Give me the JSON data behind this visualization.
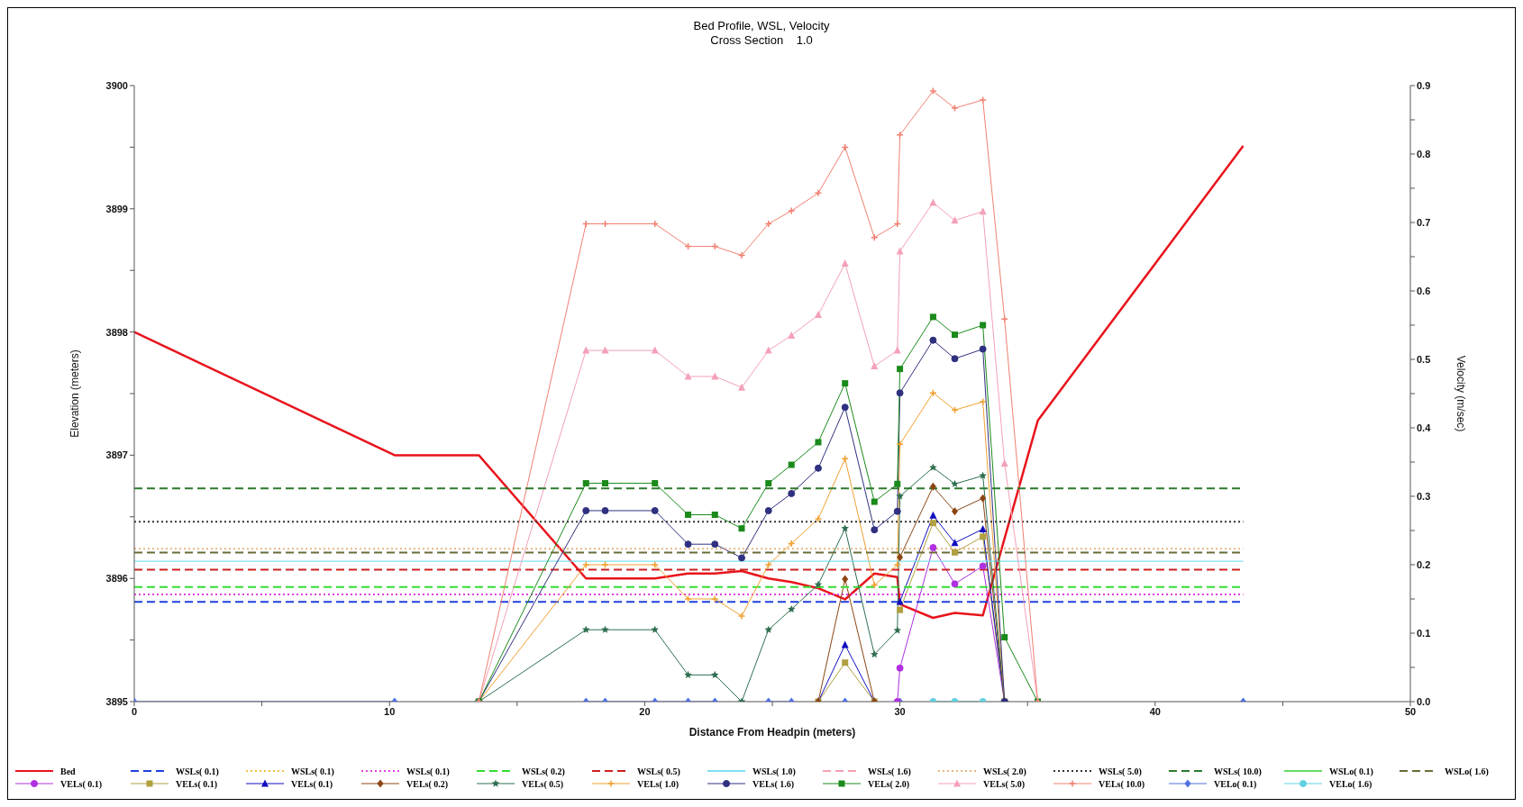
{
  "chart_data": {
    "type": "line",
    "title": "Bed Profile, WSL, Velocity",
    "subtitle": "Cross Section    1.0",
    "xlabel": "Distance From Headpin (meters)",
    "ylabel": "Elevation (meters)",
    "y2label": "Velocity (m/sec)",
    "xlim": [
      0,
      50
    ],
    "xticks": [
      0,
      {
        "value": 5,
        "label": null
      },
      10,
      {
        "value": 15,
        "label": null
      },
      20,
      {
        "value": 25,
        "label": null
      },
      30,
      {
        "value": 35,
        "label": null
      },
      40,
      {
        "value": 45,
        "label": null
      },
      50
    ],
    "ylim": [
      3895,
      3900
    ],
    "yticks": [
      3895,
      {
        "value": 3895.5,
        "label": null
      },
      3896,
      {
        "value": 3896.5,
        "label": null
      },
      3897,
      {
        "value": 3897.5,
        "label": null
      },
      3898,
      {
        "value": 3898.5,
        "label": null
      },
      3899,
      {
        "value": 3899.5,
        "label": null
      },
      3900
    ],
    "y2lim": [
      0,
      0.9
    ],
    "y2ticks": [
      {
        "value": 0,
        "label": "0.0"
      },
      {
        "value": 0.05,
        "label": null
      },
      0.1,
      {
        "value": 0.15,
        "label": null
      },
      0.2,
      {
        "value": 0.25,
        "label": null
      },
      0.3,
      {
        "value": 0.35,
        "label": null
      },
      0.4,
      {
        "value": 0.45,
        "label": null
      },
      0.5,
      {
        "value": 0.55,
        "label": null
      },
      0.6,
      {
        "value": 0.65,
        "label": null
      },
      0.7,
      {
        "value": 0.75,
        "label": null
      },
      0.8,
      {
        "value": 0.85,
        "label": null
      },
      0.9
    ],
    "legend": "bottom",
    "x": [
      0,
      10.2,
      13.5,
      17.7,
      18.45,
      20.4,
      21.7,
      22.75,
      23.8,
      24.85,
      25.75,
      26.8,
      27.85,
      29.0,
      29.9,
      30.0,
      31.3,
      32.15,
      33.25,
      34.1,
      35.4,
      43.45
    ],
    "series": [
      {
        "name": "Bed",
        "color": "#e8141c",
        "line_style": "solid",
        "marker": "none",
        "x": [
          0,
          10.2,
          13.5,
          17.7,
          18.45,
          20.4,
          21.7,
          22.75,
          23.8,
          24.85,
          25.75,
          26.8,
          27.85,
          29.0,
          29.9,
          30.0,
          31.3,
          32.15,
          33.25,
          35.4,
          43.45
        ],
        "values": [
          3898.0,
          3897.0,
          3897.0,
          3896.0,
          3896.0,
          3896.0,
          3896.04,
          3896.04,
          3896.06,
          3896.0,
          3895.97,
          3895.92,
          3895.83,
          3896.04,
          3896.01,
          3895.79,
          3895.68,
          3895.72,
          3895.7,
          3897.28,
          3899.51
        ]
      },
      {
        "name": "VELs( 0.1)",
        "color": "#b030e0",
        "axis": "y2",
        "line_style": "solid",
        "marker": "circle",
        "values": [
          null,
          null,
          null,
          null,
          null,
          null,
          null,
          null,
          null,
          null,
          null,
          null,
          null,
          null,
          0,
          0.049,
          0.225,
          0.172,
          0.198,
          0,
          null,
          null
        ]
      },
      {
        "name": "WSLs( 0.1)",
        "color": "#1f3fdc",
        "line_style": "dashed",
        "marker": "none",
        "x": [
          0,
          43.45
        ],
        "values": [
          3895.81,
          3895.81
        ]
      },
      {
        "name": "VELs( 0.1)",
        "color": "#b0a040",
        "axis": "y2",
        "line_style": "solid",
        "marker": "square",
        "values": [
          null,
          null,
          null,
          null,
          null,
          null,
          null,
          null,
          null,
          null,
          null,
          0,
          0.057,
          0,
          null,
          0.134,
          0.261,
          0.218,
          0.241,
          0,
          null,
          null
        ]
      },
      {
        "name": "WSLs( 0.1)",
        "color": "#f0c040",
        "line_style": "dotted",
        "marker": "none",
        "values": [
          null,
          null,
          null,
          null,
          null,
          null,
          null,
          null,
          null,
          null,
          null,
          null,
          null,
          null,
          null,
          null,
          null,
          null,
          null,
          null,
          null,
          null
        ]
      },
      {
        "name": "VELs( 0.1)",
        "color": "#1010c0",
        "axis": "y2",
        "line_style": "solid",
        "marker": "triangle",
        "values": [
          null,
          null,
          null,
          null,
          null,
          null,
          null,
          null,
          null,
          null,
          null,
          0,
          0.083,
          0,
          null,
          0.146,
          0.272,
          0.232,
          0.252,
          0,
          null,
          null
        ]
      },
      {
        "name": "WSLs( 0.1)",
        "color": "#e040e0",
        "line_style": "dotted",
        "marker": "none",
        "x": [
          0,
          43.45
        ],
        "values": [
          3895.87,
          3895.87
        ]
      },
      {
        "name": "VELs( 0.2)",
        "color": "#8b4513",
        "axis": "y2",
        "line_style": "solid",
        "marker": "diamond",
        "values": [
          null,
          null,
          null,
          null,
          null,
          null,
          null,
          null,
          null,
          null,
          null,
          0,
          0.179,
          0,
          null,
          0.211,
          0.314,
          0.278,
          0.297,
          0,
          null,
          null
        ]
      },
      {
        "name": "WSLs( 0.2)",
        "color": "#33dd33",
        "line_style": "dashed",
        "marker": "none",
        "x": [
          0,
          43.45
        ],
        "values": [
          3895.93,
          3895.93
        ]
      },
      {
        "name": "VELs( 0.5)",
        "color": "#2f6f4f",
        "axis": "y2",
        "line_style": "solid",
        "marker": "star",
        "values": [
          null,
          null,
          0,
          0.105,
          0.105,
          0.105,
          0.039,
          0.039,
          0,
          0.105,
          0.135,
          0.171,
          0.253,
          0.069,
          0.104,
          0.3,
          0.342,
          0.318,
          0.33,
          0,
          null,
          null
        ]
      },
      {
        "name": "WSLs( 0.5)",
        "color": "#cc2020",
        "line_style": "dashed",
        "marker": "none",
        "x": [
          0,
          43.45
        ],
        "values": [
          3896.07,
          3896.07
        ]
      },
      {
        "name": "VELs( 1.0)",
        "color": "#f0a030",
        "axis": "y2",
        "line_style": "solid",
        "marker": "cross",
        "values": [
          null,
          null,
          0,
          0.2,
          0.2,
          0.2,
          0.15,
          0.15,
          0.125,
          0.2,
          0.231,
          0.267,
          0.355,
          0.17,
          0.2,
          0.376,
          0.451,
          0.426,
          0.438,
          0,
          null,
          null
        ]
      },
      {
        "name": "WSLs( 1.0)",
        "color": "#7fe0f0",
        "line_style": "solid",
        "marker": "none",
        "x": [
          0,
          43.45
        ],
        "values": [
          3896.14,
          3896.14
        ]
      },
      {
        "name": "VELs( 1.6)",
        "color": "#303080",
        "axis": "y2",
        "line_style": "solid",
        "marker": "circle",
        "values": [
          null,
          null,
          0,
          0.279,
          0.279,
          0.279,
          0.23,
          0.23,
          0.21,
          0.279,
          0.304,
          0.341,
          0.43,
          0.251,
          0.278,
          0.451,
          0.528,
          0.501,
          0.515,
          0,
          null,
          null
        ]
      },
      {
        "name": "WSLs( 1.6)",
        "color": "#f4a0b0",
        "line_style": "dashed",
        "marker": "none",
        "values": [
          null,
          null,
          null,
          null,
          null,
          null,
          null,
          null,
          null,
          null,
          null,
          null,
          null,
          null,
          null,
          null,
          null,
          null,
          null,
          null,
          null,
          null
        ]
      },
      {
        "name": "VELs( 2.0)",
        "color": "#1a8a1a",
        "axis": "y2",
        "line_style": "solid",
        "marker": "square",
        "values": [
          null,
          null,
          0,
          0.319,
          0.319,
          0.319,
          0.273,
          0.273,
          0.253,
          0.319,
          0.346,
          0.379,
          0.465,
          0.292,
          0.318,
          0.486,
          0.562,
          0.536,
          0.55,
          0.094,
          0,
          null
        ]
      },
      {
        "name": "WSLs( 2.0)",
        "color": "#e8b880",
        "line_style": "dotted",
        "marker": "none",
        "x": [
          0,
          43.45
        ],
        "values": [
          3896.24,
          3896.24
        ]
      },
      {
        "name": "VELs( 5.0)",
        "color": "#f4a0b8",
        "axis": "y2",
        "line_style": "solid",
        "marker": "triangle",
        "values": [
          null,
          null,
          0,
          0.513,
          0.513,
          0.513,
          0.475,
          0.475,
          0.459,
          0.513,
          0.535,
          0.565,
          0.64,
          0.49,
          0.513,
          0.658,
          0.729,
          0.703,
          0.716,
          0.348,
          0,
          null
        ]
      },
      {
        "name": "WSLs( 5.0)",
        "color": "#333333",
        "line_style": "dotted",
        "marker": "none",
        "x": [
          0,
          43.45
        ],
        "values": [
          3896.46,
          3896.46
        ]
      },
      {
        "name": "VELs( 10.0)",
        "color": "#f08070",
        "axis": "y2",
        "line_style": "solid",
        "marker": "cross",
        "values": [
          null,
          null,
          0,
          0.698,
          0.698,
          0.698,
          0.665,
          0.665,
          0.652,
          0.698,
          0.717,
          0.743,
          0.81,
          0.678,
          0.698,
          0.828,
          0.892,
          0.867,
          0.879,
          0.559,
          0,
          null
        ]
      },
      {
        "name": "WSLs( 10.0)",
        "color": "#2d7a2d",
        "line_style": "dashed",
        "marker": "none",
        "x": [
          0,
          43.45
        ],
        "values": [
          3896.73,
          3896.73
        ]
      },
      {
        "name": "VELo( 0.1)",
        "color": "#5070e0",
        "axis": "y2",
        "line_style": "solid",
        "marker": "diamond",
        "values": [
          0,
          0,
          null,
          0,
          0,
          0,
          0,
          0,
          null,
          0,
          0,
          null,
          0,
          null,
          null,
          0,
          null,
          null,
          null,
          null,
          null,
          0
        ]
      },
      {
        "name": "WSLo( 0.1)",
        "color": "#66dd66",
        "line_style": "solid",
        "marker": "none",
        "values": [
          null,
          null,
          null,
          null,
          null,
          null,
          null,
          null,
          null,
          null,
          null,
          null,
          null,
          null,
          null,
          null,
          null,
          null,
          null,
          null,
          null,
          null
        ]
      },
      {
        "name": "VELo( 1.6)",
        "color": "#60d0e0",
        "axis": "y2",
        "line_style": "solid",
        "marker": "circle",
        "values": [
          null,
          null,
          null,
          null,
          null,
          null,
          null,
          null,
          null,
          null,
          null,
          null,
          null,
          null,
          null,
          null,
          0,
          0,
          0,
          null,
          null,
          null
        ]
      },
      {
        "name": "WSLo( 1.6)",
        "color": "#6b6b3a",
        "line_style": "dashed",
        "marker": "none",
        "x": [
          0,
          43.45
        ],
        "values": [
          3896.21,
          3896.21
        ]
      }
    ]
  }
}
